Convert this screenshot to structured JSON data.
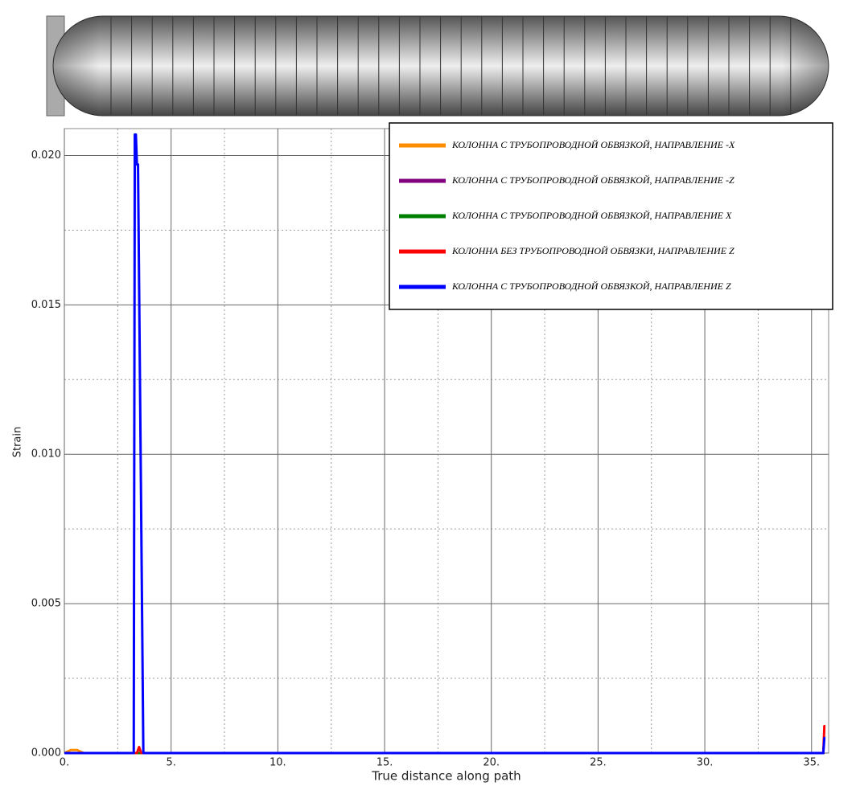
{
  "chart_data": {
    "type": "line",
    "xlabel": "True distance along path",
    "ylabel": "Strain",
    "xlim": [
      0,
      35.8
    ],
    "ylim": [
      0,
      0.0209
    ],
    "xticks": [
      {
        "value": 0,
        "label": "0."
      },
      {
        "value": 5,
        "label": "5."
      },
      {
        "value": 10,
        "label": "10."
      },
      {
        "value": 15,
        "label": "15."
      },
      {
        "value": 20,
        "label": "20."
      },
      {
        "value": 25,
        "label": "25."
      },
      {
        "value": 30,
        "label": "30."
      },
      {
        "value": 35,
        "label": "35."
      }
    ],
    "yticks": [
      {
        "value": 0,
        "label": "0.000"
      },
      {
        "value": 0.005,
        "label": "0.005"
      },
      {
        "value": 0.01,
        "label": "0.010"
      },
      {
        "value": 0.015,
        "label": "0.015"
      },
      {
        "value": 0.02,
        "label": "0.020"
      }
    ],
    "minor_xticks": [
      2.5,
      7.5,
      12.5,
      17.5,
      22.5,
      27.5,
      32.5
    ],
    "minor_yticks": [
      0.0025,
      0.0075,
      0.0125,
      0.0175
    ],
    "grid": true,
    "legend": "upper right",
    "series": [
      {
        "name": "КОЛОННА С ТРУБОПРОВОДНОЙ ОБВЯЗКОЙ, НАПРАВЛЕНИЕ -X",
        "color": "#ff8c00",
        "x": [
          0,
          0.3,
          0.6,
          0.9,
          35.6
        ],
        "values": [
          0,
          0.0001,
          0.0001,
          0,
          0
        ]
      },
      {
        "name": "КОЛОННА С ТРУБОПРОВОДНОЙ ОБВЯЗКОЙ, НАПРАВЛЕНИЕ -Z",
        "color": "#800080",
        "x": [
          0,
          35.6
        ],
        "values": [
          0,
          0
        ]
      },
      {
        "name": "КОЛОННА С ТРУБОПРОВОДНОЙ ОБВЯЗКОЙ, НАПРАВЛЕНИЕ X",
        "color": "#008000",
        "x": [
          0,
          35.6
        ],
        "values": [
          0,
          0
        ]
      },
      {
        "name": "КОЛОННА БЕЗ ТРУБОПРОВОДНОЙ ОБВЯЗКИ, НАПРАВЛЕНИЕ Z",
        "color": "#ff0000",
        "x": [
          0,
          3.4,
          3.5,
          3.6,
          35.55,
          35.6,
          35.65
        ],
        "values": [
          0,
          0,
          0.0002,
          0,
          0,
          0.0009,
          0.0009
        ]
      },
      {
        "name": "КОЛОННА С ТРУБОПРОВОДНОЙ ОБВЯЗКОЙ, НАПРАВЛЕНИЕ Z",
        "color": "#0000ff",
        "x": [
          0,
          3.25,
          3.3,
          3.35,
          3.4,
          3.45,
          3.7,
          35.55,
          35.6,
          35.65
        ],
        "values": [
          0,
          0,
          0.0207,
          0.0207,
          0.0197,
          0.0197,
          0,
          0,
          0.0005,
          0.0005
        ]
      }
    ]
  }
}
